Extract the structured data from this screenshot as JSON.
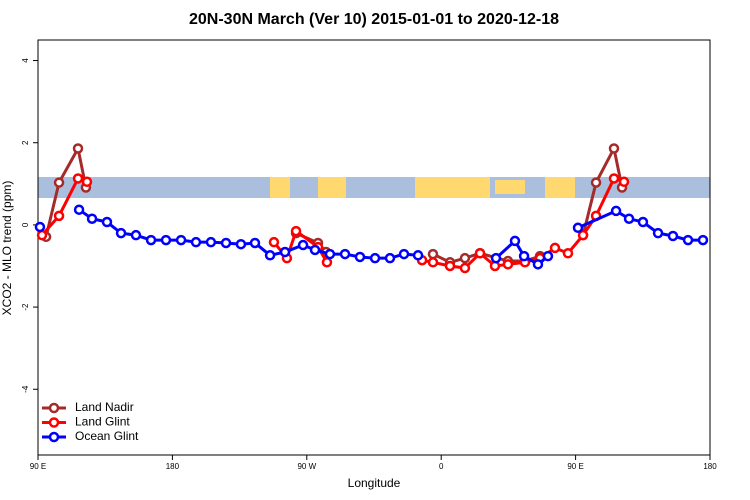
{
  "chart_data": {
    "type": "line",
    "title": "20N-30N March (Ver 10)   2015-01-01 to 2020-12-18",
    "x_label": "Longitude",
    "y_label": "XCO2 - MLO trend (ppm)",
    "xlim": [
      90,
      540
    ],
    "xticks": [
      {
        "value": 90,
        "label": "90 E"
      },
      180,
      {
        "value": 270,
        "label": "90 W"
      },
      {
        "value": 360,
        "label": "0"
      },
      {
        "value": 450,
        "label": "90 E"
      },
      {
        "value": 540,
        "label": "180"
      }
    ],
    "ylim": [
      -5.6,
      4.5
    ],
    "yticks": [
      -4,
      -2,
      0,
      2,
      4
    ],
    "legend": "bottom-left",
    "series": [
      {
        "name": "Land Nadir",
        "color": "#a52a2a",
        "x": [
          95.4,
          104.1,
          116.8,
          122.1,
          null,
          262.8,
          277.5,
          282.9,
          null,
          354.5,
          365.9,
          375.9,
          386.0,
          404.7,
          416.1,
          426.2,
          null,
          455.0,
          463.7,
          475.7,
          481.1
        ],
        "values": [
          -0.29,
          1.03,
          1.86,
          0.91,
          null,
          -0.2,
          -0.44,
          -0.66,
          null,
          -0.71,
          -0.91,
          -0.81,
          -0.69,
          -0.88,
          -0.88,
          -0.76,
          null,
          -0.25,
          1.03,
          1.86,
          0.91
        ]
      },
      {
        "name": "Land Glint",
        "color": "#ff0000",
        "x": [
          92.7,
          104.1,
          116.8,
          122.8,
          null,
          248.0,
          256.7,
          262.8,
          277.5,
          283.5,
          null,
          347.2,
          354.5,
          365.9,
          375.9,
          386.0,
          396.0,
          404.7,
          416.1,
          426.2,
          436.2,
          444.9,
          455.0,
          463.7,
          475.7,
          482.4
        ],
        "values": [
          -0.25,
          0.22,
          1.13,
          1.05,
          null,
          -0.42,
          -0.81,
          -0.15,
          -0.54,
          -0.91,
          null,
          -0.86,
          -0.91,
          -1.0,
          -1.05,
          -0.69,
          -1.0,
          -0.96,
          -0.91,
          -0.81,
          -0.56,
          -0.69,
          -0.25,
          0.22,
          1.13,
          1.05
        ]
      },
      {
        "name": "Ocean Glint",
        "color": "#0000ff",
        "x": [
          91.3,
          null,
          117.5,
          126.2,
          136.2,
          145.6,
          155.6,
          165.7,
          175.7,
          185.8,
          195.8,
          205.8,
          215.9,
          225.9,
          235.3,
          245.4,
          255.4,
          267.5,
          275.5,
          285.5,
          295.6,
          305.6,
          315.7,
          325.7,
          335.1,
          344.5,
          null,
          396.7,
          409.4,
          415.5,
          424.8,
          431.5,
          null,
          451.6,
          477.1,
          485.8,
          495.1,
          505.2,
          515.2,
          525.3,
          535.3
        ],
        "values": [
          -0.05,
          null,
          0.37,
          0.15,
          0.07,
          -0.2,
          -0.25,
          -0.37,
          -0.37,
          -0.37,
          -0.42,
          -0.42,
          -0.44,
          -0.47,
          -0.44,
          -0.74,
          -0.66,
          -0.49,
          -0.61,
          -0.71,
          -0.71,
          -0.78,
          -0.81,
          -0.81,
          -0.71,
          -0.74,
          null,
          -0.81,
          -0.39,
          -0.76,
          -0.96,
          -0.76,
          null,
          -0.07,
          0.34,
          0.15,
          0.07,
          -0.2,
          -0.27,
          -0.37,
          -0.37
        ]
      }
    ]
  }
}
